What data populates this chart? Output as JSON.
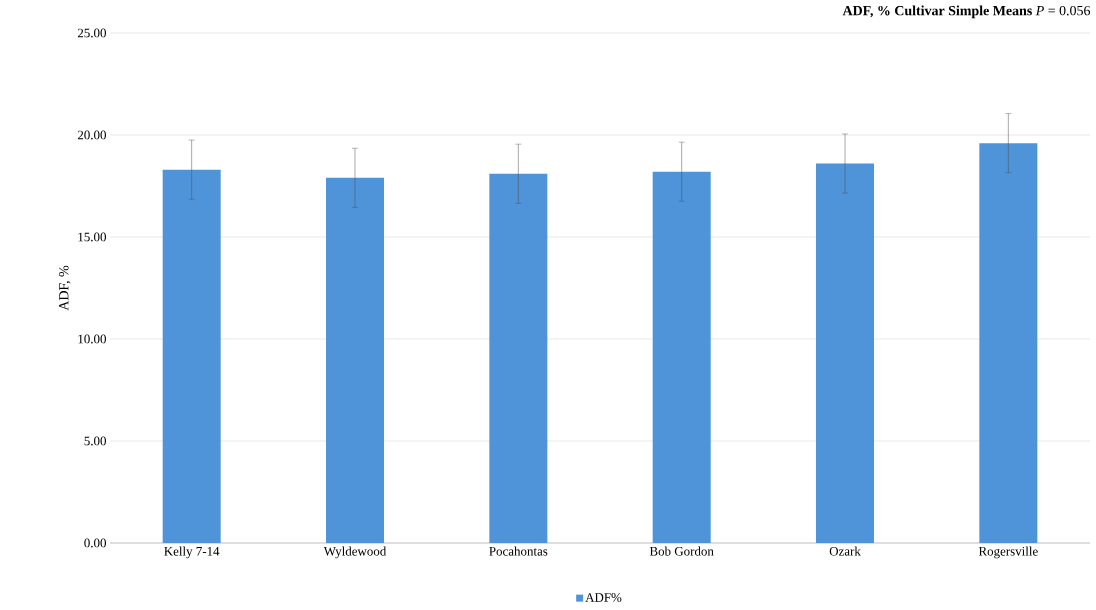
{
  "chart_data": {
    "type": "bar",
    "title": "**ADF, % Cultivar Simple Means** *P* = 0.056",
    "ylabel": "ADF, %",
    "categories": [
      "Kelly 7-14",
      "Wyldewood",
      "Pocahontas",
      "Bob Gordon",
      "Ozark",
      "Rogersville"
    ],
    "series": [
      {
        "name": "ADF%",
        "color": "#4f94d8",
        "values": [
          18.3,
          17.9,
          18.1,
          18.2,
          18.6,
          19.6
        ],
        "errors": [
          1.45,
          1.45,
          1.45,
          1.45,
          1.45,
          1.45
        ]
      }
    ],
    "ylim": [
      0,
      25
    ],
    "yticks": [
      {
        "value": 0,
        "label": "0.00"
      },
      {
        "value": 5,
        "label": "5.00"
      },
      {
        "value": 10,
        "label": "10.00"
      },
      {
        "value": 15,
        "label": "15.00"
      },
      {
        "value": 20,
        "label": "20.00"
      },
      {
        "value": 25,
        "label": "25.00"
      }
    ],
    "grid": "y",
    "legend": "bottom"
  }
}
